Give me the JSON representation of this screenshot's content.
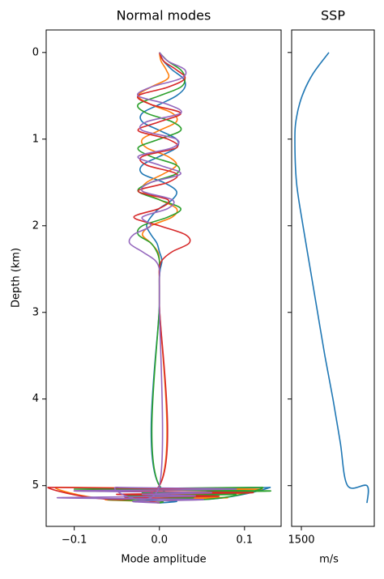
{
  "chart_data": [
    {
      "type": "line",
      "title": "Normal modes",
      "xlabel": "Mode amplitude",
      "ylabel": "Depth (km)",
      "depth": [
        0,
        0.1,
        0.2,
        0.3,
        0.4,
        0.5,
        0.6,
        0.7,
        0.8,
        0.9,
        1.0,
        1.1,
        1.2,
        1.3,
        1.4,
        1.5,
        1.6,
        1.7,
        1.8,
        1.9,
        2.0,
        2.1,
        2.2,
        2.3,
        2.4,
        2.5,
        2.6,
        2.7,
        2.8,
        2.9,
        5.0,
        5.02,
        5.04,
        5.06,
        5.08,
        5.1,
        5.12,
        5.14,
        5.16,
        5.18,
        5.2
      ],
      "series": [
        {
          "color": "#1f77b4",
          "values": [
            0,
            0.005,
            0.015,
            0.028,
            0.03,
            0.02,
            0,
            -0.02,
            -0.02,
            0,
            0.02,
            0.02,
            0,
            -0.02,
            -0.02,
            0.005,
            0.02,
            0.015,
            0,
            -0.01,
            -0.015,
            -0.01,
            -0.003,
            0,
            0.003,
            0.001,
            0,
            0,
            0,
            0,
            0,
            0.13,
            -0.03,
            0.1,
            -0.01,
            0.05,
            -0.04,
            0.06,
            -0.02,
            0.02,
            0
          ]
        },
        {
          "color": "#ff7f0e",
          "values": [
            0,
            0.002,
            0.008,
            0.01,
            -0.01,
            -0.025,
            -0.01,
            0.015,
            0.02,
            0,
            -0.02,
            -0.015,
            0.01,
            0.02,
            0.005,
            -0.015,
            -0.02,
            0,
            0.02,
            0.015,
            -0.01,
            -0.02,
            -0.01,
            -0.002,
            0,
            0,
            0,
            0,
            0,
            0,
            0,
            -0.12,
            0.12,
            -0.05,
            0.1,
            0.06,
            -0.03,
            0.08,
            -0.06,
            -0.02,
            0
          ]
        },
        {
          "color": "#2ca02c",
          "values": [
            0,
            0.01,
            0.025,
            0.03,
            0.025,
            0,
            -0.025,
            -0.015,
            0.015,
            0.025,
            0,
            -0.025,
            -0.01,
            0.02,
            0.02,
            -0.01,
            -0.025,
            0,
            0.025,
            0.01,
            -0.02,
            -0.025,
            -0.01,
            -0.003,
            0,
            0,
            0,
            0,
            0,
            0,
            0,
            0.12,
            -0.1,
            0.13,
            -0.02,
            0.09,
            -0.04,
            0.04,
            -0.06,
            0,
            0
          ]
        },
        {
          "color": "#d62728",
          "values": [
            0,
            0.005,
            0.02,
            0.03,
            0.01,
            -0.025,
            -0.01,
            0.025,
            0,
            -0.025,
            0.01,
            0.02,
            -0.02,
            -0.015,
            0.02,
            0.01,
            -0.025,
            0.01,
            0,
            -0.03,
            0,
            0.03,
            0.035,
            0.015,
            0.003,
            0,
            0,
            0,
            0,
            0,
            0,
            -0.13,
            0.08,
            -0.1,
            0.11,
            -0.05,
            0.07,
            -0.04,
            0.03,
            -0.01,
            0
          ]
        },
        {
          "color": "#9467bd",
          "values": [
            0,
            0.01,
            0.03,
            0.025,
            -0.01,
            -0.025,
            0.01,
            0.025,
            -0.015,
            -0.02,
            0.02,
            0.015,
            -0.025,
            0,
            0.025,
            -0.01,
            -0.02,
            0.015,
            0.01,
            -0.02,
            -0.01,
            -0.03,
            -0.035,
            -0.02,
            -0.005,
            0,
            0,
            0,
            0,
            0,
            0,
            -0.05,
            0.09,
            -0.1,
            0.06,
            -0.02,
            0.04,
            -0.12,
            0.05,
            -0.03,
            0
          ]
        }
      ],
      "xlim": [
        -0.133,
        0.143
      ],
      "ylim": [
        -0.26,
        5.47
      ],
      "invert_y": true,
      "xticks": [
        {
          "value": -0.1,
          "label": "−0.1"
        },
        {
          "value": 0,
          "label": "0.0"
        },
        {
          "value": 0.1,
          "label": "0.1"
        }
      ],
      "yticks": [
        0,
        1,
        2,
        3,
        4,
        5
      ]
    },
    {
      "type": "line",
      "title": "SSP",
      "xlabel": "m/s",
      "depth": [
        0,
        0.25,
        0.5,
        0.75,
        1,
        1.5,
        2,
        2.5,
        3,
        3.5,
        4,
        4.5,
        5,
        5,
        5.2
      ],
      "series": [
        {
          "color": "#1f77b4",
          "values": [
            1534,
            1514,
            1501,
            1494,
            1492,
            1494,
            1502,
            1511,
            1520,
            1529,
            1539,
            1548,
            1557,
            1581,
            1581
          ]
        }
      ],
      "xlim": [
        1488,
        1590
      ],
      "ylim": [
        -0.26,
        5.47
      ],
      "invert_y": true,
      "xticks": [
        1500
      ],
      "yticks": [
        0,
        1,
        2,
        3,
        4,
        5
      ],
      "ytick_labels": false
    }
  ]
}
